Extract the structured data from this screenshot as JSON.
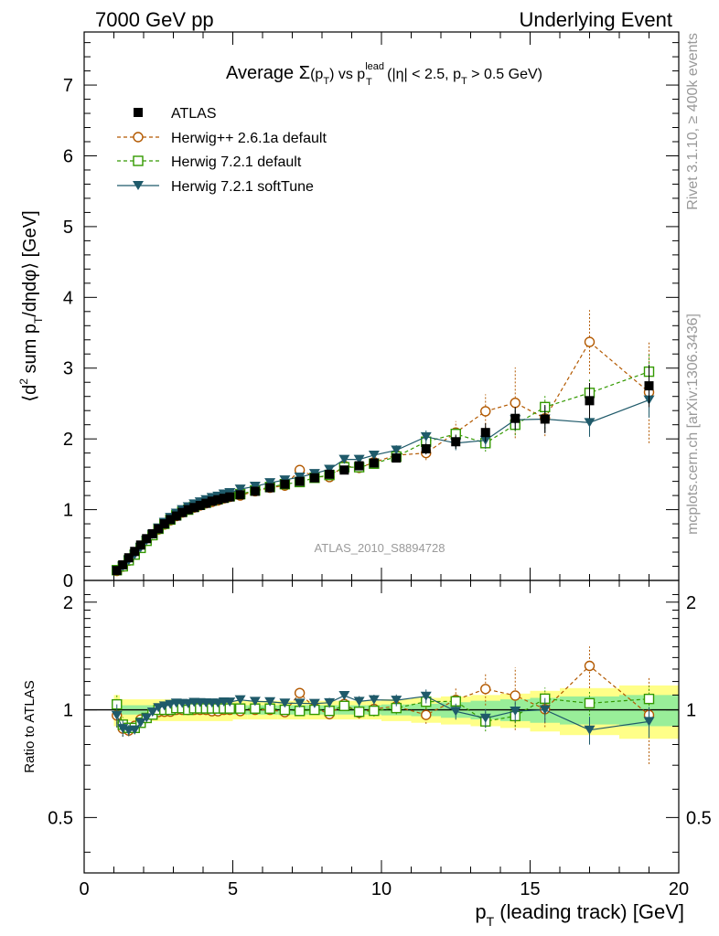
{
  "header": {
    "left": "7000 GeV pp",
    "right": "Underlying Event"
  },
  "side_labels": {
    "rivet": "Rivet 3.1.10, ≥ 400k events",
    "mcplots": "mcplots.cern.ch [arXiv:1306.3436]"
  },
  "watermark": "ATLAS_2010_S8894728",
  "colors": {
    "data": "#000000",
    "herwigpp": "#b35900",
    "herwig721": "#339900",
    "softtune": "#1f5a6a",
    "band_outer": "#ffff88",
    "band_inner": "#99ee99"
  },
  "chart_data": [
    {
      "type": "scatter",
      "title": "Average Σ(p_T) vs p_T^lead (|η| < 2.5, p_T > 0.5 GeV)",
      "title_parts": {
        "lead": "Average ",
        "sigma": "Σ",
        "paren_open": "(p",
        "sub_T": "T",
        "paren_close": ")",
        "vs": " vs p",
        "sup_lead": "lead",
        "cond_open": " (|η| < 2.5, p",
        "cond_close": " > 0.5 GeV)"
      },
      "ylabel": "⟨d² sum p_T/dηdφ⟩ [GeV]",
      "ylabel_parts": {
        "open": "⟨d",
        "sup2": "2",
        "mid": " sum p",
        "sub_T": "T",
        "close": "/dηdφ⟩ [GeV]"
      },
      "xlim": [
        0,
        20
      ],
      "ylim": [
        0,
        7.75
      ],
      "yticks": [
        0,
        1,
        2,
        3,
        4,
        5,
        6,
        7
      ],
      "legend_position": "top-left",
      "legend": [
        "ATLAS",
        "Herwig++ 2.6.1a default",
        "Herwig 7.2.1 default",
        "Herwig 7.2.1 softTune"
      ],
      "series": [
        {
          "name": "ATLAS",
          "x": [
            1.1,
            1.3,
            1.5,
            1.7,
            1.9,
            2.1,
            2.3,
            2.5,
            2.7,
            2.9,
            3.1,
            3.3,
            3.5,
            3.7,
            3.9,
            4.1,
            4.3,
            4.5,
            4.7,
            4.9,
            5.25,
            5.75,
            6.25,
            6.75,
            7.25,
            7.75,
            8.25,
            8.75,
            9.25,
            9.75,
            10.5,
            11.5,
            12.5,
            13.5,
            14.5,
            15.5,
            17.0,
            19.0
          ],
          "y": [
            0.14,
            0.22,
            0.32,
            0.41,
            0.5,
            0.59,
            0.66,
            0.73,
            0.8,
            0.86,
            0.91,
            0.96,
            1.0,
            1.03,
            1.06,
            1.09,
            1.12,
            1.14,
            1.16,
            1.18,
            1.21,
            1.26,
            1.31,
            1.36,
            1.4,
            1.45,
            1.5,
            1.56,
            1.62,
            1.66,
            1.73,
            1.86,
            1.96,
            2.09,
            2.29,
            2.28,
            2.54,
            2.75
          ],
          "y_err": [
            0.02,
            0.02,
            0.02,
            0.02,
            0.02,
            0.02,
            0.02,
            0.02,
            0.02,
            0.02,
            0.02,
            0.02,
            0.02,
            0.02,
            0.02,
            0.02,
            0.02,
            0.02,
            0.02,
            0.02,
            0.03,
            0.03,
            0.03,
            0.03,
            0.03,
            0.04,
            0.04,
            0.05,
            0.05,
            0.05,
            0.06,
            0.08,
            0.1,
            0.13,
            0.16,
            0.2,
            0.25,
            0.3
          ]
        },
        {
          "name": "Herwig++ 2.6.1a default",
          "x": [
            1.1,
            1.3,
            1.5,
            1.7,
            1.9,
            2.1,
            2.3,
            2.5,
            2.7,
            2.9,
            3.1,
            3.3,
            3.5,
            3.7,
            3.9,
            4.1,
            4.3,
            4.5,
            4.7,
            4.9,
            5.25,
            5.75,
            6.25,
            6.75,
            7.25,
            7.75,
            8.25,
            8.75,
            9.25,
            9.75,
            10.5,
            11.5,
            12.5,
            13.5,
            14.5,
            15.5,
            17.0,
            19.0
          ],
          "y": [
            0.135,
            0.195,
            0.28,
            0.37,
            0.47,
            0.56,
            0.64,
            0.72,
            0.79,
            0.85,
            0.91,
            0.96,
            1.0,
            1.03,
            1.06,
            1.09,
            1.11,
            1.13,
            1.16,
            1.18,
            1.2,
            1.26,
            1.31,
            1.34,
            1.56,
            1.47,
            1.46,
            1.62,
            1.59,
            1.67,
            1.77,
            1.8,
            2.09,
            2.39,
            2.51,
            2.29,
            3.37,
            2.66
          ],
          "y_err": [
            0.01,
            0.01,
            0.01,
            0.01,
            0.01,
            0.01,
            0.01,
            0.01,
            0.01,
            0.01,
            0.01,
            0.01,
            0.01,
            0.01,
            0.01,
            0.01,
            0.01,
            0.01,
            0.01,
            0.01,
            0.02,
            0.02,
            0.03,
            0.03,
            0.04,
            0.04,
            0.05,
            0.06,
            0.06,
            0.07,
            0.08,
            0.1,
            0.16,
            0.24,
            0.5,
            0.25,
            0.45,
            0.72
          ]
        },
        {
          "name": "Herwig 7.2.1 default",
          "x": [
            1.1,
            1.3,
            1.5,
            1.7,
            1.9,
            2.1,
            2.3,
            2.5,
            2.7,
            2.9,
            3.1,
            3.3,
            3.5,
            3.7,
            3.9,
            4.1,
            4.3,
            4.5,
            4.7,
            4.9,
            5.25,
            5.75,
            6.25,
            6.75,
            7.25,
            7.75,
            8.25,
            8.75,
            9.25,
            9.75,
            10.5,
            11.5,
            12.5,
            13.5,
            14.5,
            15.5,
            17.0,
            19.0
          ],
          "y": [
            0.145,
            0.2,
            0.285,
            0.365,
            0.46,
            0.56,
            0.64,
            0.73,
            0.8,
            0.86,
            0.92,
            0.97,
            1.0,
            1.04,
            1.07,
            1.1,
            1.13,
            1.15,
            1.17,
            1.19,
            1.22,
            1.27,
            1.32,
            1.36,
            1.39,
            1.45,
            1.49,
            1.6,
            1.6,
            1.65,
            1.75,
            1.96,
            2.07,
            1.94,
            2.2,
            2.45,
            2.65,
            2.95
          ],
          "y_err": [
            0.01,
            0.01,
            0.01,
            0.01,
            0.01,
            0.01,
            0.01,
            0.01,
            0.01,
            0.01,
            0.01,
            0.01,
            0.01,
            0.01,
            0.01,
            0.01,
            0.01,
            0.01,
            0.01,
            0.01,
            0.02,
            0.02,
            0.03,
            0.03,
            0.03,
            0.04,
            0.05,
            0.05,
            0.06,
            0.06,
            0.07,
            0.09,
            0.1,
            0.12,
            0.15,
            0.18,
            0.2,
            0.25
          ]
        },
        {
          "name": "Herwig 7.2.1 softTune",
          "x": [
            1.1,
            1.3,
            1.5,
            1.7,
            1.9,
            2.1,
            2.3,
            2.5,
            2.7,
            2.9,
            3.1,
            3.3,
            3.5,
            3.7,
            3.9,
            4.1,
            4.3,
            4.5,
            4.7,
            4.9,
            5.25,
            5.75,
            6.25,
            6.75,
            7.25,
            7.75,
            8.25,
            8.75,
            9.25,
            9.75,
            10.5,
            11.5,
            12.5,
            13.5,
            14.5,
            15.5,
            17.0,
            19.0
          ],
          "y": [
            0.135,
            0.195,
            0.28,
            0.36,
            0.46,
            0.56,
            0.65,
            0.74,
            0.82,
            0.89,
            0.95,
            1.0,
            1.04,
            1.08,
            1.11,
            1.14,
            1.17,
            1.19,
            1.22,
            1.24,
            1.29,
            1.33,
            1.38,
            1.42,
            1.46,
            1.51,
            1.57,
            1.71,
            1.71,
            1.77,
            1.84,
            2.03,
            1.94,
            1.98,
            2.27,
            2.28,
            2.23,
            2.55
          ],
          "y_err": [
            0.01,
            0.01,
            0.01,
            0.01,
            0.01,
            0.01,
            0.01,
            0.01,
            0.01,
            0.01,
            0.01,
            0.01,
            0.01,
            0.01,
            0.01,
            0.01,
            0.01,
            0.01,
            0.01,
            0.01,
            0.02,
            0.02,
            0.03,
            0.03,
            0.03,
            0.04,
            0.05,
            0.05,
            0.06,
            0.06,
            0.07,
            0.09,
            0.1,
            0.12,
            0.15,
            0.18,
            0.2,
            0.25
          ]
        }
      ]
    },
    {
      "type": "scatter",
      "title": "",
      "ylabel": "Ratio to ATLAS",
      "xlabel": "p_T (leading track) [GeV]",
      "xlabel_parts": {
        "p": "p",
        "sub_T": "T",
        "rest": " (leading track) [GeV]"
      },
      "xlim": [
        0,
        20
      ],
      "ylim": [
        0.35,
        2.3
      ],
      "yscale": "log",
      "xticks": [
        0,
        5,
        10,
        15,
        20
      ],
      "yticks": [
        0.5,
        1,
        2
      ],
      "ytick_labels": [
        "0.5",
        "1",
        "2"
      ],
      "data_band": {
        "x_edges": [
          1,
          1.2,
          1.4,
          1.6,
          1.8,
          2.0,
          2.2,
          2.4,
          2.6,
          2.8,
          3.0,
          3.2,
          3.4,
          3.6,
          3.8,
          4.0,
          4.2,
          4.4,
          4.6,
          4.8,
          5.0,
          5.5,
          6.0,
          6.5,
          7.0,
          7.5,
          8.0,
          8.5,
          9.0,
          9.5,
          10.0,
          11.0,
          12.0,
          13.0,
          14.0,
          15.0,
          16.0,
          18.0,
          20.0
        ],
        "inner_half": [
          0.04,
          0.03,
          0.03,
          0.03,
          0.03,
          0.03,
          0.03,
          0.03,
          0.03,
          0.03,
          0.03,
          0.03,
          0.03,
          0.03,
          0.03,
          0.03,
          0.03,
          0.03,
          0.03,
          0.03,
          0.03,
          0.03,
          0.03,
          0.03,
          0.03,
          0.03,
          0.03,
          0.03,
          0.03,
          0.03,
          0.035,
          0.04,
          0.05,
          0.06,
          0.07,
          0.08,
          0.09,
          0.1
        ],
        "outer_half": [
          0.1,
          0.07,
          0.07,
          0.07,
          0.07,
          0.07,
          0.07,
          0.07,
          0.07,
          0.07,
          0.07,
          0.07,
          0.07,
          0.07,
          0.07,
          0.07,
          0.07,
          0.07,
          0.07,
          0.07,
          0.06,
          0.06,
          0.06,
          0.06,
          0.06,
          0.06,
          0.06,
          0.06,
          0.06,
          0.06,
          0.07,
          0.08,
          0.09,
          0.1,
          0.11,
          0.13,
          0.15,
          0.17
        ]
      }
    }
  ]
}
